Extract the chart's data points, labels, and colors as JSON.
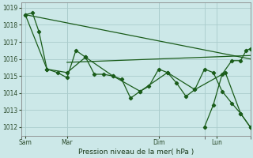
{
  "bg_color": "#cce8e8",
  "grid_color": "#aacccc",
  "line_color": "#1a5c1a",
  "marker_color": "#1a5c1a",
  "xlim": [
    0,
    285
  ],
  "ylim": [
    1011.5,
    1019.3
  ],
  "yticks": [
    1012,
    1013,
    1014,
    1015,
    1016,
    1017,
    1018,
    1019
  ],
  "x_day_ticks": [
    0,
    57,
    171,
    228,
    285
  ],
  "x_tick_labels": [
    "Sam",
    "Mar",
    "Dim",
    "Lun"
  ],
  "x_tick_label_pos": [
    5,
    57,
    171,
    243
  ],
  "xlabel": "Pression niveau de la mer( hPa )",
  "series_detail": {
    "x": [
      5,
      14,
      22,
      32,
      45,
      57,
      68,
      80,
      91,
      102,
      114,
      125,
      136,
      148,
      159,
      171,
      182,
      193,
      205,
      216,
      228,
      239,
      250,
      262,
      273,
      285
    ],
    "y": [
      1018.6,
      1018.7,
      1017.6,
      1015.4,
      1015.2,
      1014.9,
      1016.5,
      1016.1,
      1015.1,
      1015.1,
      1015.0,
      1014.8,
      1013.7,
      1014.1,
      1014.4,
      1015.4,
      1015.2,
      1014.6,
      1013.8,
      1014.2,
      1015.4,
      1015.2,
      1014.1,
      1013.4,
      1012.8,
      1012.0
    ]
  },
  "series_sparse": {
    "x": [
      5,
      32,
      57,
      80,
      114,
      148,
      182,
      216,
      254,
      273,
      285
    ],
    "y": [
      1018.6,
      1015.4,
      1015.2,
      1016.1,
      1015.0,
      1014.1,
      1015.2,
      1014.2,
      1015.2,
      1012.8,
      1012.0
    ]
  },
  "series_right": {
    "x": [
      228,
      239,
      250,
      262,
      273,
      280,
      285
    ],
    "y": [
      1012.0,
      1013.3,
      1015.1,
      1015.9,
      1015.9,
      1016.5,
      1016.6
    ]
  },
  "trend_line": {
    "x": [
      5,
      285
    ],
    "y": [
      1018.6,
      1016.0
    ]
  },
  "flat_line": {
    "x": [
      57,
      285
    ],
    "y": [
      1015.8,
      1016.2
    ]
  }
}
